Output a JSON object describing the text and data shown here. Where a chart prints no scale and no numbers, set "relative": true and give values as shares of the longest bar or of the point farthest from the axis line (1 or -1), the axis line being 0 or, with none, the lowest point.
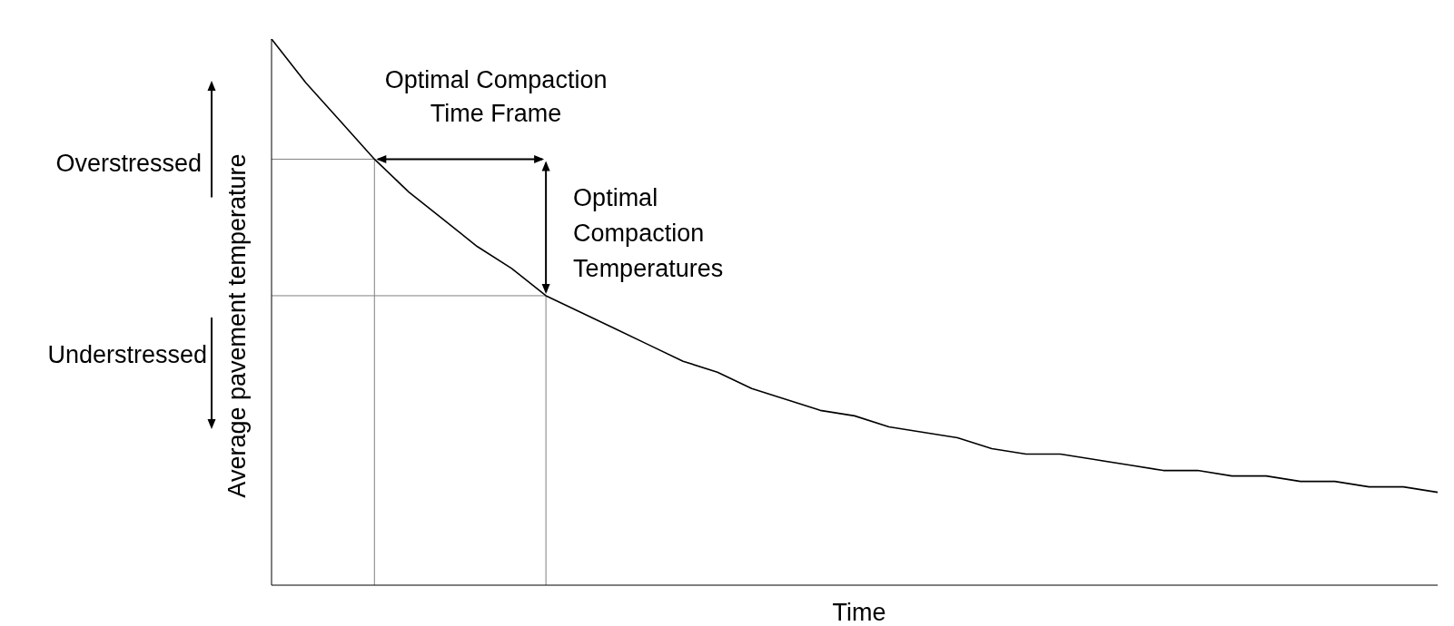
{
  "chart_data": {
    "type": "line",
    "relative": true,
    "xlabel": "Time",
    "ylabel": "Average pavement temperature",
    "categories": [
      null,
      null,
      null,
      null,
      null,
      null,
      null,
      null,
      null,
      null,
      null,
      null,
      null,
      null,
      null,
      null,
      null,
      null,
      null,
      null,
      null,
      null,
      null,
      null,
      null,
      null,
      null,
      null,
      null,
      null,
      null,
      null,
      null,
      null,
      null
    ],
    "series": [
      {
        "color": "#000000",
        "values": [
          1.0,
          0.92,
          0.85,
          0.78,
          0.72,
          0.67,
          0.62,
          0.58,
          0.53,
          0.5,
          0.47,
          0.44,
          0.41,
          0.39,
          0.36,
          0.34,
          0.32,
          0.31,
          0.29,
          0.28,
          0.27,
          0.25,
          0.24,
          0.24,
          0.23,
          0.22,
          0.21,
          0.21,
          0.2,
          0.2,
          0.19,
          0.19,
          0.18,
          0.18,
          0.17
        ]
      }
    ],
    "marker": "none",
    "ref_lines": [
      {
        "axis": "y",
        "value": 0.78,
        "color": "#808080"
      },
      {
        "axis": "y",
        "value": 0.53,
        "color": "#808080"
      }
    ],
    "annotations": [
      "Optimal Compaction\nTime Frame",
      "Optimal\nCompaction\nTemperatures",
      "Overstressed",
      "Understressed"
    ]
  }
}
